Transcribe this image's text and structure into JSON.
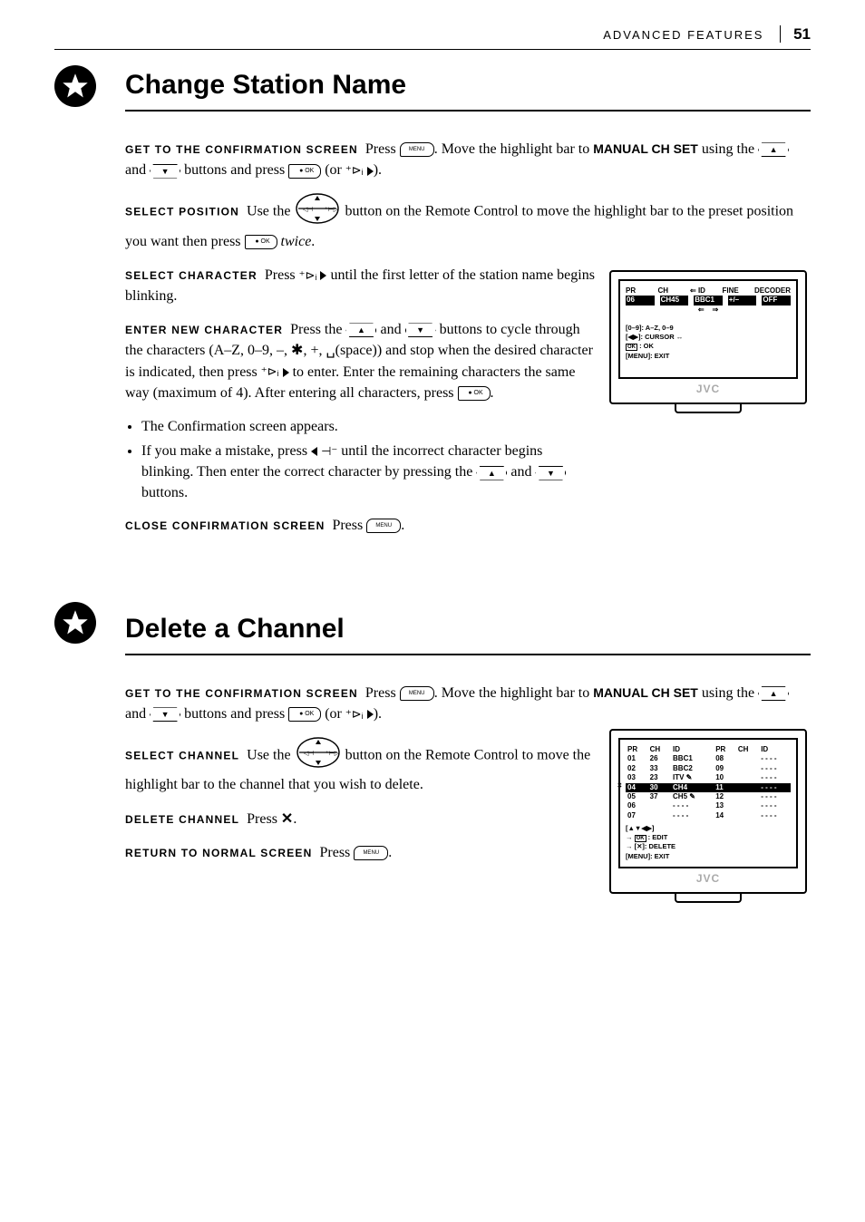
{
  "header": {
    "section": "ADVANCED FEATURES",
    "page": "51"
  },
  "section1": {
    "title": "Change Station Name",
    "steps": {
      "confirm_label": "GET TO THE CONFIRMATION SCREEN",
      "confirm_body_a": "Press",
      "confirm_body_b": ". Move the highlight bar to",
      "confirm_ui": "MANUAL CH SET",
      "confirm_body_c": "using the",
      "confirm_body_d": "and",
      "confirm_body_e": "buttons and press",
      "confirm_body_f": "(or",
      "confirm_body_g": ").",
      "position_label": "SELECT POSITION",
      "position_body_a": "Use the",
      "position_body_b": "button on the Remote Control to move the highlight bar to the preset position you want then press",
      "position_body_c": "twice",
      "position_body_d": ".",
      "char_label": "SELECT CHARACTER",
      "char_body_a": "Press",
      "char_body_b": "until the first letter of the station name begins blinking.",
      "enter_label": "ENTER NEW CHARACTER",
      "enter_body_a": "Press the",
      "enter_body_b": "and",
      "enter_body_c": "buttons to cycle through the characters (A–Z, 0–9, –, ✱, +, ␣(space)) and stop when the desired character is indicated, then press",
      "enter_body_d": "to enter. Enter the remaining characters the same way (maximum of 4). After entering all characters, press",
      "enter_body_e": ".",
      "bullet1": "The Confirmation screen appears.",
      "bullet2a": "If you make a mistake, press",
      "bullet2b": "until the incorrect character begins blinking. Then enter the correct character by pressing the",
      "bullet2c": "and",
      "bullet2d": "buttons.",
      "close_label": "CLOSE CONFIRMATION SCREEN",
      "close_body": "Press",
      "close_body_b": "."
    }
  },
  "tv1": {
    "hdr_pr": "PR",
    "hdr_ch": "CH",
    "hdr_id": "ID",
    "hdr_fine": "FINE",
    "hdr_dec": "DECODER",
    "row_pr": "06",
    "row_ch": "CH45",
    "row_id": "BBC1",
    "row_fine": "+/–",
    "row_dec": "OFF",
    "hint1": "[0–9]:  A–Z, 0–9",
    "hint2": "[◀▶]: CURSOR ↔",
    "hint3": "OK : OK",
    "hint4": "[MENU]: EXIT",
    "logo": "JVC"
  },
  "section2": {
    "title": "Delete a Channel",
    "steps": {
      "confirm_label": "GET TO THE CONFIRMATION SCREEN",
      "confirm_body_a": "Press",
      "confirm_body_b": ". Move the highlight bar to",
      "confirm_ui": "MANUAL CH SET",
      "confirm_body_c": "using the",
      "confirm_body_d": "and",
      "confirm_body_e": "buttons and press",
      "confirm_body_f": "(or",
      "confirm_body_g": ").",
      "select_label": "SELECT CHANNEL",
      "select_body_a": "Use the",
      "select_body_b": "button on the Remote Control to move the highlight bar to the channel that you wish to delete.",
      "delete_label": "DELETE CHANNEL",
      "delete_body": "Press",
      "delete_body_b": ".",
      "return_label": "RETURN TO NORMAL SCREEN",
      "return_body": "Press",
      "return_body_b": "."
    }
  },
  "tv2": {
    "hdr_pr": "PR",
    "hdr_ch": "CH",
    "hdr_id": "ID",
    "rows": [
      [
        "01",
        "26",
        "BBC1",
        "08",
        "",
        "- - - -"
      ],
      [
        "02",
        "33",
        "BBC2",
        "09",
        "",
        "- - - -"
      ],
      [
        "03",
        "23",
        "ITV ✎",
        "10",
        "",
        "- - - -"
      ],
      [
        "04",
        "30",
        "CH4",
        "11",
        "",
        "- - - -"
      ],
      [
        "05",
        "37",
        "CH5 ✎",
        "12",
        "",
        "- - - -"
      ],
      [
        "06",
        "",
        "- - - -",
        "13",
        "",
        "- - - -"
      ],
      [
        "07",
        "",
        "- - - -",
        "14",
        "",
        "- - - -"
      ]
    ],
    "hl_index": 3,
    "hint1": "[▲▼◀▶]",
    "hint2": "→ OK : EDIT",
    "hint3": "→ [✕]: DELETE",
    "hint4": "[MENU]: EXIT",
    "logo": "JVC"
  },
  "icons": {
    "menu": "MENU",
    "ok": "● OK",
    "up_glyph": "▲",
    "down_glyph": "▼"
  }
}
